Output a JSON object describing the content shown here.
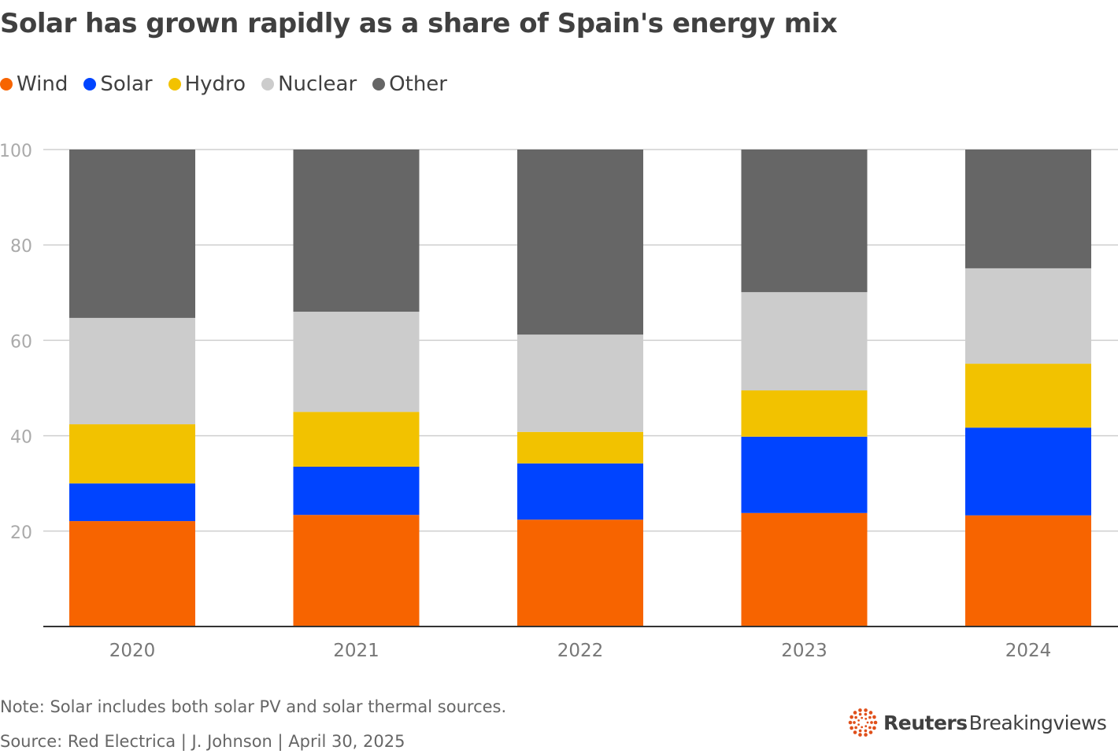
{
  "chart_data": {
    "type": "bar",
    "stacked": true,
    "title": "Solar has grown rapidly as a share of Spain's energy mix",
    "categories": [
      "2020",
      "2021",
      "2022",
      "2023",
      "2024"
    ],
    "series": [
      {
        "name": "Wind",
        "color": "#f76400",
        "values": [
          22.1,
          23.4,
          22.4,
          23.8,
          23.3
        ]
      },
      {
        "name": "Solar",
        "color": "#0044ff",
        "values": [
          7.9,
          10.1,
          11.8,
          16.0,
          18.4
        ]
      },
      {
        "name": "Hydro",
        "color": "#f2c200",
        "values": [
          12.4,
          11.5,
          6.6,
          9.7,
          13.4
        ]
      },
      {
        "name": "Nuclear",
        "color": "#cccccc",
        "values": [
          22.3,
          21.0,
          20.4,
          20.6,
          20.0
        ]
      },
      {
        "name": "Other",
        "color": "#666666",
        "values": [
          35.3,
          34.0,
          38.8,
          29.9,
          24.9
        ]
      }
    ],
    "ylim": [
      0,
      100
    ],
    "yticks": [
      "20",
      "40",
      "60",
      "80",
      "100"
    ],
    "grid": true,
    "legend": "top-left",
    "xlabel": "",
    "ylabel": ""
  },
  "note": "Note: Solar includes both solar PV and solar thermal sources.",
  "source": "Source: Red Electrica | J. Johnson | April 30, 2025",
  "logo": {
    "brand": "Reuters",
    "product": "Breakingviews"
  }
}
